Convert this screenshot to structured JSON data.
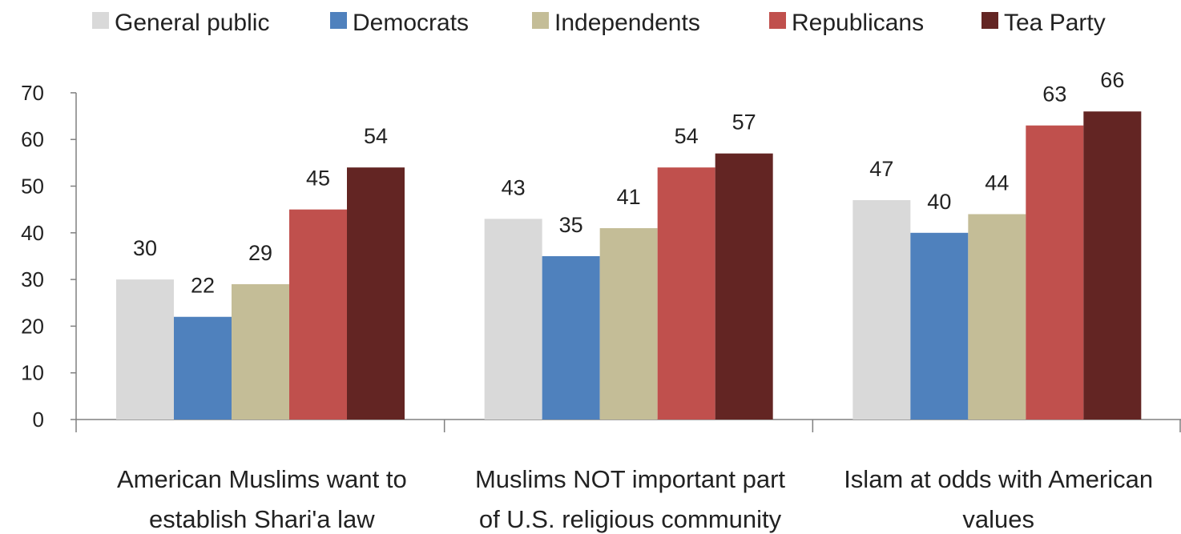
{
  "chart_data": {
    "type": "bar",
    "title": "",
    "xlabel": "",
    "ylabel": "",
    "ylim": [
      0,
      70
    ],
    "yticks": [
      0,
      10,
      20,
      30,
      40,
      50,
      60,
      70
    ],
    "grid": false,
    "legend_position": "top",
    "categories": [
      [
        "American Muslims want to",
        "establish Shari'a law"
      ],
      [
        "Muslims NOT important part",
        "of U.S. religious community"
      ],
      [
        "Islam at odds with American",
        "values"
      ]
    ],
    "series": [
      {
        "name": "General public",
        "color": "#d9d9d9",
        "values": [
          30,
          43,
          47
        ]
      },
      {
        "name": "Democrats",
        "color": "#4f81bd",
        "values": [
          22,
          35,
          40
        ]
      },
      {
        "name": "Independents",
        "color": "#c4bd97",
        "values": [
          29,
          41,
          44
        ]
      },
      {
        "name": "Republicans",
        "color": "#c0504d",
        "values": [
          45,
          54,
          63
        ]
      },
      {
        "name": "Tea Party",
        "color": "#632523",
        "values": [
          54,
          57,
          66
        ]
      }
    ]
  }
}
